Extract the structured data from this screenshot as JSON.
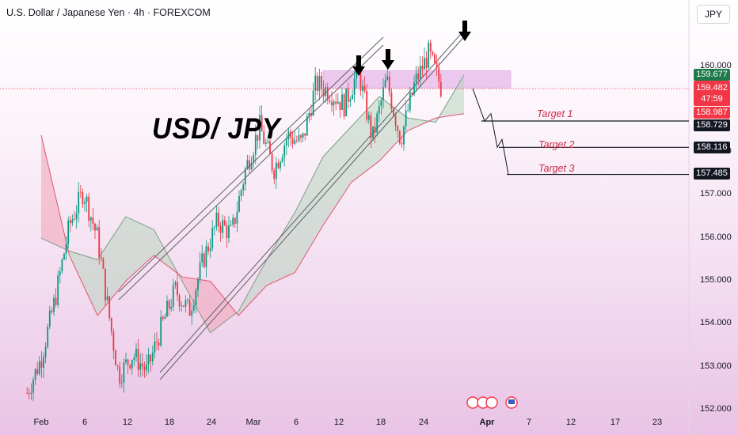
{
  "header": {
    "symbol_title": "U.S. Dollar / Japanese Yen · 4h · FOREXCOM",
    "currency_button": "JPY"
  },
  "annotation_title": "USD/ JPY",
  "targets": [
    {
      "label": "Target 1",
      "price_label": "158.729",
      "price": 158.729
    },
    {
      "label": "Target 2",
      "price_label": "158.116",
      "price": 158.116
    },
    {
      "label": "Target 3",
      "price_label": "157.485",
      "price": 157.485
    }
  ],
  "current_price": {
    "value": "159.482",
    "countdown": "47:59"
  },
  "price_badges": [
    {
      "label": "159.677",
      "color": "#1e7a4c"
    },
    {
      "label": "158.987",
      "color": "#f23645"
    }
  ],
  "chart_data": {
    "type": "candlestick",
    "y_axis": {
      "ticks": [
        "160.000",
        "159.000",
        "158.000",
        "157.000",
        "156.000",
        "155.000",
        "154.000",
        "153.000",
        "152.000"
      ],
      "range": [
        152.0,
        160.5
      ]
    },
    "x_axis": {
      "ticks": [
        "Feb",
        "6",
        "12",
        "18",
        "24",
        "Mar",
        "6",
        "12",
        "18",
        "24",
        "Apr",
        "7",
        "12",
        "17",
        "23"
      ]
    },
    "indicators": [
      "Ichimoku cloud",
      "Ascending channel",
      "Resistance zone"
    ],
    "resistance_zone": [
      159.5,
      159.9
    ],
    "price_path": [
      [
        "Jan 30",
        152.4
      ],
      [
        "Feb 1",
        153.2
      ],
      [
        "Feb 3",
        154.6
      ],
      [
        "Feb 5",
        156.3
      ],
      [
        "Feb 7",
        157.1
      ],
      [
        "Feb 9",
        156.0
      ],
      [
        "Feb 11",
        153.8
      ],
      [
        "Feb 12",
        152.8
      ],
      [
        "Feb 14",
        153.3
      ],
      [
        "Feb 16",
        152.9
      ],
      [
        "Feb 18",
        153.9
      ],
      [
        "Feb 20",
        154.8
      ],
      [
        "Feb 22",
        154.3
      ],
      [
        "Feb 24",
        155.5
      ],
      [
        "Feb 26",
        156.4
      ],
      [
        "Feb 28",
        156.1
      ],
      [
        "Mar 2",
        157.6
      ],
      [
        "Mar 4",
        158.6
      ],
      [
        "Mar 6",
        157.6
      ],
      [
        "Mar 8",
        158.4
      ],
      [
        "Mar 10",
        158.2
      ],
      [
        "Mar 12",
        159.6
      ],
      [
        "Mar 14",
        159.4
      ],
      [
        "Mar 16",
        159.1
      ],
      [
        "Mar 18",
        159.9
      ],
      [
        "Mar 20",
        158.3
      ],
      [
        "Mar 22",
        159.7
      ],
      [
        "Mar 24",
        158.3
      ],
      [
        "Mar 26",
        159.6
      ],
      [
        "Mar 28",
        160.3
      ],
      [
        "Mar 30",
        159.4
      ]
    ],
    "projection": [
      159.482,
      158.729,
      158.9,
      158.116,
      158.3,
      157.485
    ],
    "cloud": [
      {
        "date": "Feb 1",
        "a": 156.0,
        "b": 158.4
      },
      {
        "date": "Feb 5",
        "a": 155.7,
        "b": 155.6
      },
      {
        "date": "Feb 9",
        "a": 155.5,
        "b": 154.2
      },
      {
        "date": "Feb 13",
        "a": 156.5,
        "b": 155.0
      },
      {
        "date": "Feb 17",
        "a": 156.2,
        "b": 155.6
      },
      {
        "date": "Feb 21",
        "a": 155.0,
        "b": 155.1
      },
      {
        "date": "Feb 25",
        "a": 153.8,
        "b": 155.0
      },
      {
        "date": "Mar 1",
        "a": 154.3,
        "b": 154.2
      },
      {
        "date": "Mar 5",
        "a": 155.5,
        "b": 154.9
      },
      {
        "date": "Mar 9",
        "a": 156.6,
        "b": 155.2
      },
      {
        "date": "Mar 13",
        "a": 157.9,
        "b": 156.3
      },
      {
        "date": "Mar 17",
        "a": 158.6,
        "b": 157.3
      },
      {
        "date": "Mar 21",
        "a": 159.3,
        "b": 157.8
      },
      {
        "date": "Mar 25",
        "a": 158.8,
        "b": 158.5
      },
      {
        "date": "Mar 29",
        "a": 158.7,
        "b": 158.8
      },
      {
        "date": "Apr 2",
        "a": 159.8,
        "b": 158.9
      }
    ]
  }
}
